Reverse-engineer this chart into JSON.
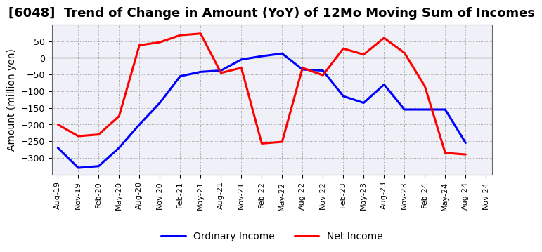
{
  "title": "[6048]  Trend of Change in Amount (YoY) of 12Mo Moving Sum of Incomes",
  "ylabel": "Amount (million yen)",
  "x_labels": [
    "Aug-19",
    "Nov-19",
    "Feb-20",
    "May-20",
    "Aug-20",
    "Nov-20",
    "Feb-21",
    "May-21",
    "Aug-21",
    "Nov-21",
    "Feb-22",
    "May-22",
    "Aug-22",
    "Nov-22",
    "Feb-23",
    "May-23",
    "Aug-23",
    "Nov-23",
    "Feb-24",
    "May-24",
    "Aug-24",
    "Nov-24"
  ],
  "ordinary_income": [
    -270,
    -330,
    -325,
    -270,
    -200,
    -135,
    -55,
    -42,
    -38,
    -5,
    5,
    13,
    -35,
    -38,
    -115,
    -135,
    -80,
    -155,
    -155,
    -155,
    -255,
    null
  ],
  "net_income": [
    -200,
    -235,
    -230,
    -175,
    38,
    47,
    68,
    73,
    -45,
    -30,
    -257,
    -252,
    -30,
    -52,
    28,
    10,
    60,
    15,
    -85,
    -285,
    -290,
    null
  ],
  "ordinary_color": "#0000ff",
  "net_color": "#ff0000",
  "ylim": [
    -350,
    100
  ],
  "yticks": [
    -300,
    -250,
    -200,
    -150,
    -100,
    -50,
    0,
    50
  ],
  "bg_color": "#f0f0f8",
  "title_fontsize": 13,
  "legend_fontsize": 10
}
